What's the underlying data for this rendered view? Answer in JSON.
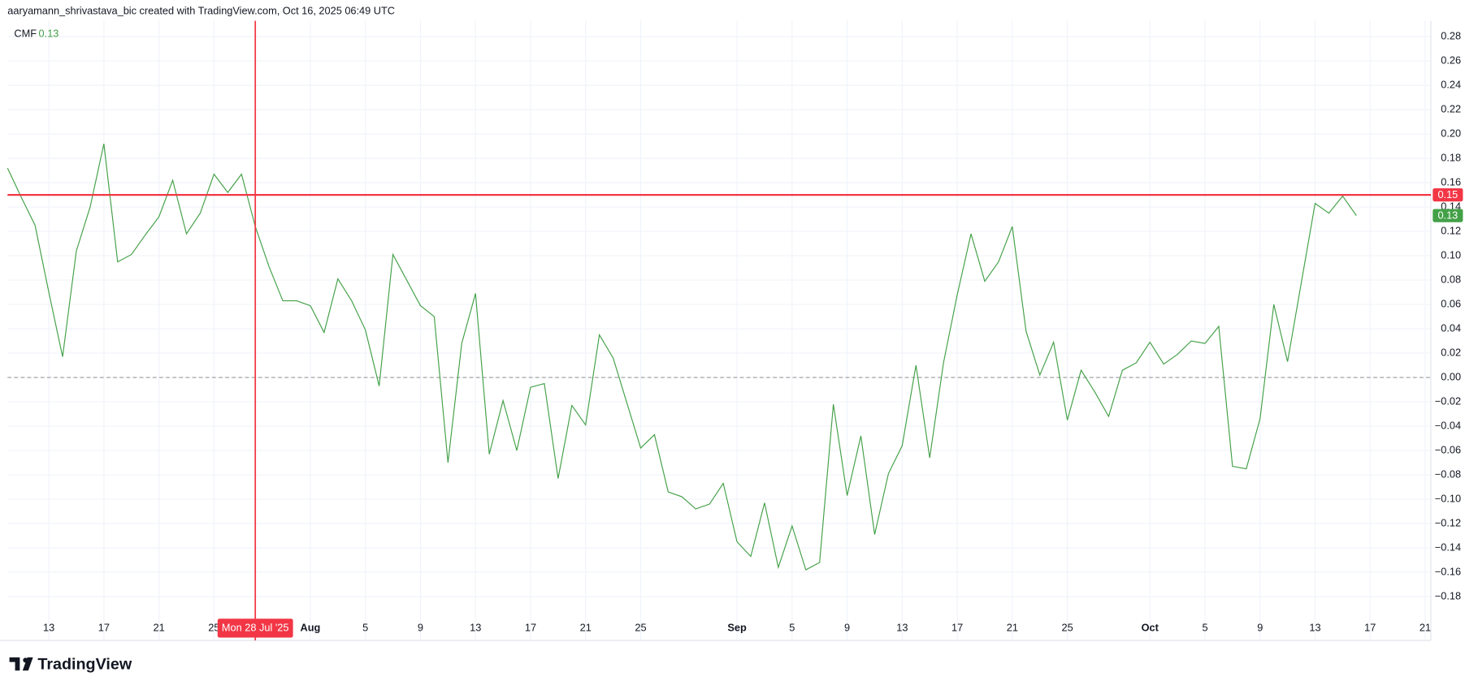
{
  "header": "aaryamann_shrivastava_bic created with TradingView.com, Oct 16, 2025 06:49 UTC",
  "footer": "TradingView",
  "chart_data": {
    "type": "line",
    "current_value": 0.13,
    "xlim": [
      "2025-07-10",
      "2025-10-21"
    ],
    "ylim": [
      -0.216,
      0.293
    ],
    "grid": true,
    "baseline": 0,
    "xticks": [
      {
        "value": "2025-07-13",
        "label": "13"
      },
      {
        "value": "2025-07-17",
        "label": "17"
      },
      {
        "value": "2025-07-21",
        "label": "21"
      },
      {
        "value": "2025-07-25",
        "label": "25"
      },
      {
        "value": "2025-08-01",
        "label": "Aug"
      },
      {
        "value": "2025-08-05",
        "label": "5"
      },
      {
        "value": "2025-08-09",
        "label": "9"
      },
      {
        "value": "2025-08-13",
        "label": "13"
      },
      {
        "value": "2025-08-17",
        "label": "17"
      },
      {
        "value": "2025-08-21",
        "label": "21"
      },
      {
        "value": "2025-08-25",
        "label": "25"
      },
      {
        "value": "2025-09-01",
        "label": "Sep"
      },
      {
        "value": "2025-09-05",
        "label": "5"
      },
      {
        "value": "2025-09-09",
        "label": "9"
      },
      {
        "value": "2025-09-13",
        "label": "13"
      },
      {
        "value": "2025-09-17",
        "label": "17"
      },
      {
        "value": "2025-09-21",
        "label": "21"
      },
      {
        "value": "2025-09-25",
        "label": "25"
      },
      {
        "value": "2025-10-01",
        "label": "Oct"
      },
      {
        "value": "2025-10-05",
        "label": "5"
      },
      {
        "value": "2025-10-09",
        "label": "9"
      },
      {
        "value": "2025-10-13",
        "label": "13"
      },
      {
        "value": "2025-10-17",
        "label": "17"
      },
      {
        "value": "2025-10-21",
        "label": "21"
      }
    ],
    "yticks": [
      {
        "value": 0.28,
        "label": "0.28"
      },
      {
        "value": 0.26,
        "label": "0.26"
      },
      {
        "value": 0.24,
        "label": "0.24"
      },
      {
        "value": 0.22,
        "label": "0.22"
      },
      {
        "value": 0.2,
        "label": "0.20"
      },
      {
        "value": 0.18,
        "label": "0.18"
      },
      {
        "value": 0.16,
        "label": "0.16"
      },
      {
        "value": 0.14,
        "label": "0.14"
      },
      {
        "value": 0.12,
        "label": "0.12"
      },
      {
        "value": 0.1,
        "label": "0.10"
      },
      {
        "value": 0.08,
        "label": "0.08"
      },
      {
        "value": 0.06,
        "label": "0.06"
      },
      {
        "value": 0.04,
        "label": "0.04"
      },
      {
        "value": 0.02,
        "label": "0.02"
      },
      {
        "value": 0,
        "label": "0.00"
      },
      {
        "value": -0.02,
        "label": "−0.02"
      },
      {
        "value": -0.04,
        "label": "−0.04"
      },
      {
        "value": -0.06,
        "label": "−0.06"
      },
      {
        "value": -0.08,
        "label": "−0.08"
      },
      {
        "value": -0.1,
        "label": "−0.10"
      },
      {
        "value": -0.12,
        "label": "−0.12"
      },
      {
        "value": -0.14,
        "label": "−0.14"
      },
      {
        "value": -0.16,
        "label": "−0.16"
      },
      {
        "value": -0.18,
        "label": "−0.18"
      }
    ],
    "hline": {
      "value": 0.15,
      "color": "#f23645"
    },
    "crosshair": {
      "x": "2025-07-28",
      "label": "Mon 28 Jul '25",
      "color": "#f23645"
    },
    "x": [
      "2025-07-10",
      "2025-07-11",
      "2025-07-12",
      "2025-07-13",
      "2025-07-14",
      "2025-07-15",
      "2025-07-16",
      "2025-07-17",
      "2025-07-18",
      "2025-07-19",
      "2025-07-20",
      "2025-07-21",
      "2025-07-22",
      "2025-07-23",
      "2025-07-24",
      "2025-07-25",
      "2025-07-26",
      "2025-07-27",
      "2025-07-28",
      "2025-07-29",
      "2025-07-30",
      "2025-07-31",
      "2025-08-01",
      "2025-08-02",
      "2025-08-03",
      "2025-08-04",
      "2025-08-05",
      "2025-08-06",
      "2025-08-07",
      "2025-08-08",
      "2025-08-09",
      "2025-08-10",
      "2025-08-11",
      "2025-08-12",
      "2025-08-13",
      "2025-08-14",
      "2025-08-15",
      "2025-08-16",
      "2025-08-17",
      "2025-08-18",
      "2025-08-19",
      "2025-08-20",
      "2025-08-21",
      "2025-08-22",
      "2025-08-23",
      "2025-08-24",
      "2025-08-25",
      "2025-08-26",
      "2025-08-27",
      "2025-08-28",
      "2025-08-29",
      "2025-08-30",
      "2025-08-31",
      "2025-09-01",
      "2025-09-02",
      "2025-09-03",
      "2025-09-04",
      "2025-09-05",
      "2025-09-06",
      "2025-09-07",
      "2025-09-08",
      "2025-09-09",
      "2025-09-10",
      "2025-09-11",
      "2025-09-12",
      "2025-09-13",
      "2025-09-14",
      "2025-09-15",
      "2025-09-16",
      "2025-09-17",
      "2025-09-18",
      "2025-09-19",
      "2025-09-20",
      "2025-09-21",
      "2025-09-22",
      "2025-09-23",
      "2025-09-24",
      "2025-09-25",
      "2025-09-26",
      "2025-09-27",
      "2025-09-28",
      "2025-09-29",
      "2025-09-30",
      "2025-10-01",
      "2025-10-02",
      "2025-10-03",
      "2025-10-04",
      "2025-10-05",
      "2025-10-06",
      "2025-10-07",
      "2025-10-08",
      "2025-10-09",
      "2025-10-10",
      "2025-10-11",
      "2025-10-12",
      "2025-10-13",
      "2025-10-14",
      "2025-10-15",
      "2025-10-16"
    ],
    "series": [
      {
        "name": "CMF",
        "color": "#43a047",
        "values": [
          0.172,
          0.148,
          0.125,
          0.07,
          0.017,
          0.104,
          0.14,
          0.192,
          0.095,
          0.101,
          0.117,
          0.132,
          0.162,
          0.118,
          0.135,
          0.167,
          0.152,
          0.167,
          0.124,
          0.091,
          0.063,
          0.063,
          0.059,
          0.037,
          0.081,
          0.063,
          0.039,
          -0.007,
          0.101,
          0.08,
          0.059,
          0.05,
          -0.07,
          0.028,
          0.069,
          -0.063,
          -0.019,
          -0.06,
          -0.008,
          -0.005,
          -0.083,
          -0.023,
          -0.039,
          0.035,
          0.016,
          -0.021,
          -0.058,
          -0.047,
          -0.094,
          -0.098,
          -0.108,
          -0.104,
          -0.087,
          -0.135,
          -0.147,
          -0.103,
          -0.156,
          -0.122,
          -0.158,
          -0.152,
          -0.022,
          -0.097,
          -0.048,
          -0.129,
          -0.079,
          -0.056,
          0.01,
          -0.066,
          0.012,
          0.068,
          0.118,
          0.079,
          0.095,
          0.124,
          0.038,
          0.002,
          0.029,
          -0.035,
          0.006,
          -0.012,
          -0.032,
          0.006,
          0.012,
          0.029,
          0.011,
          0.019,
          0.03,
          0.028,
          0.042,
          -0.073,
          -0.075,
          -0.034,
          0.06,
          0.013,
          0.078,
          0.143,
          0.135,
          0.149,
          0.133
        ]
      }
    ]
  }
}
